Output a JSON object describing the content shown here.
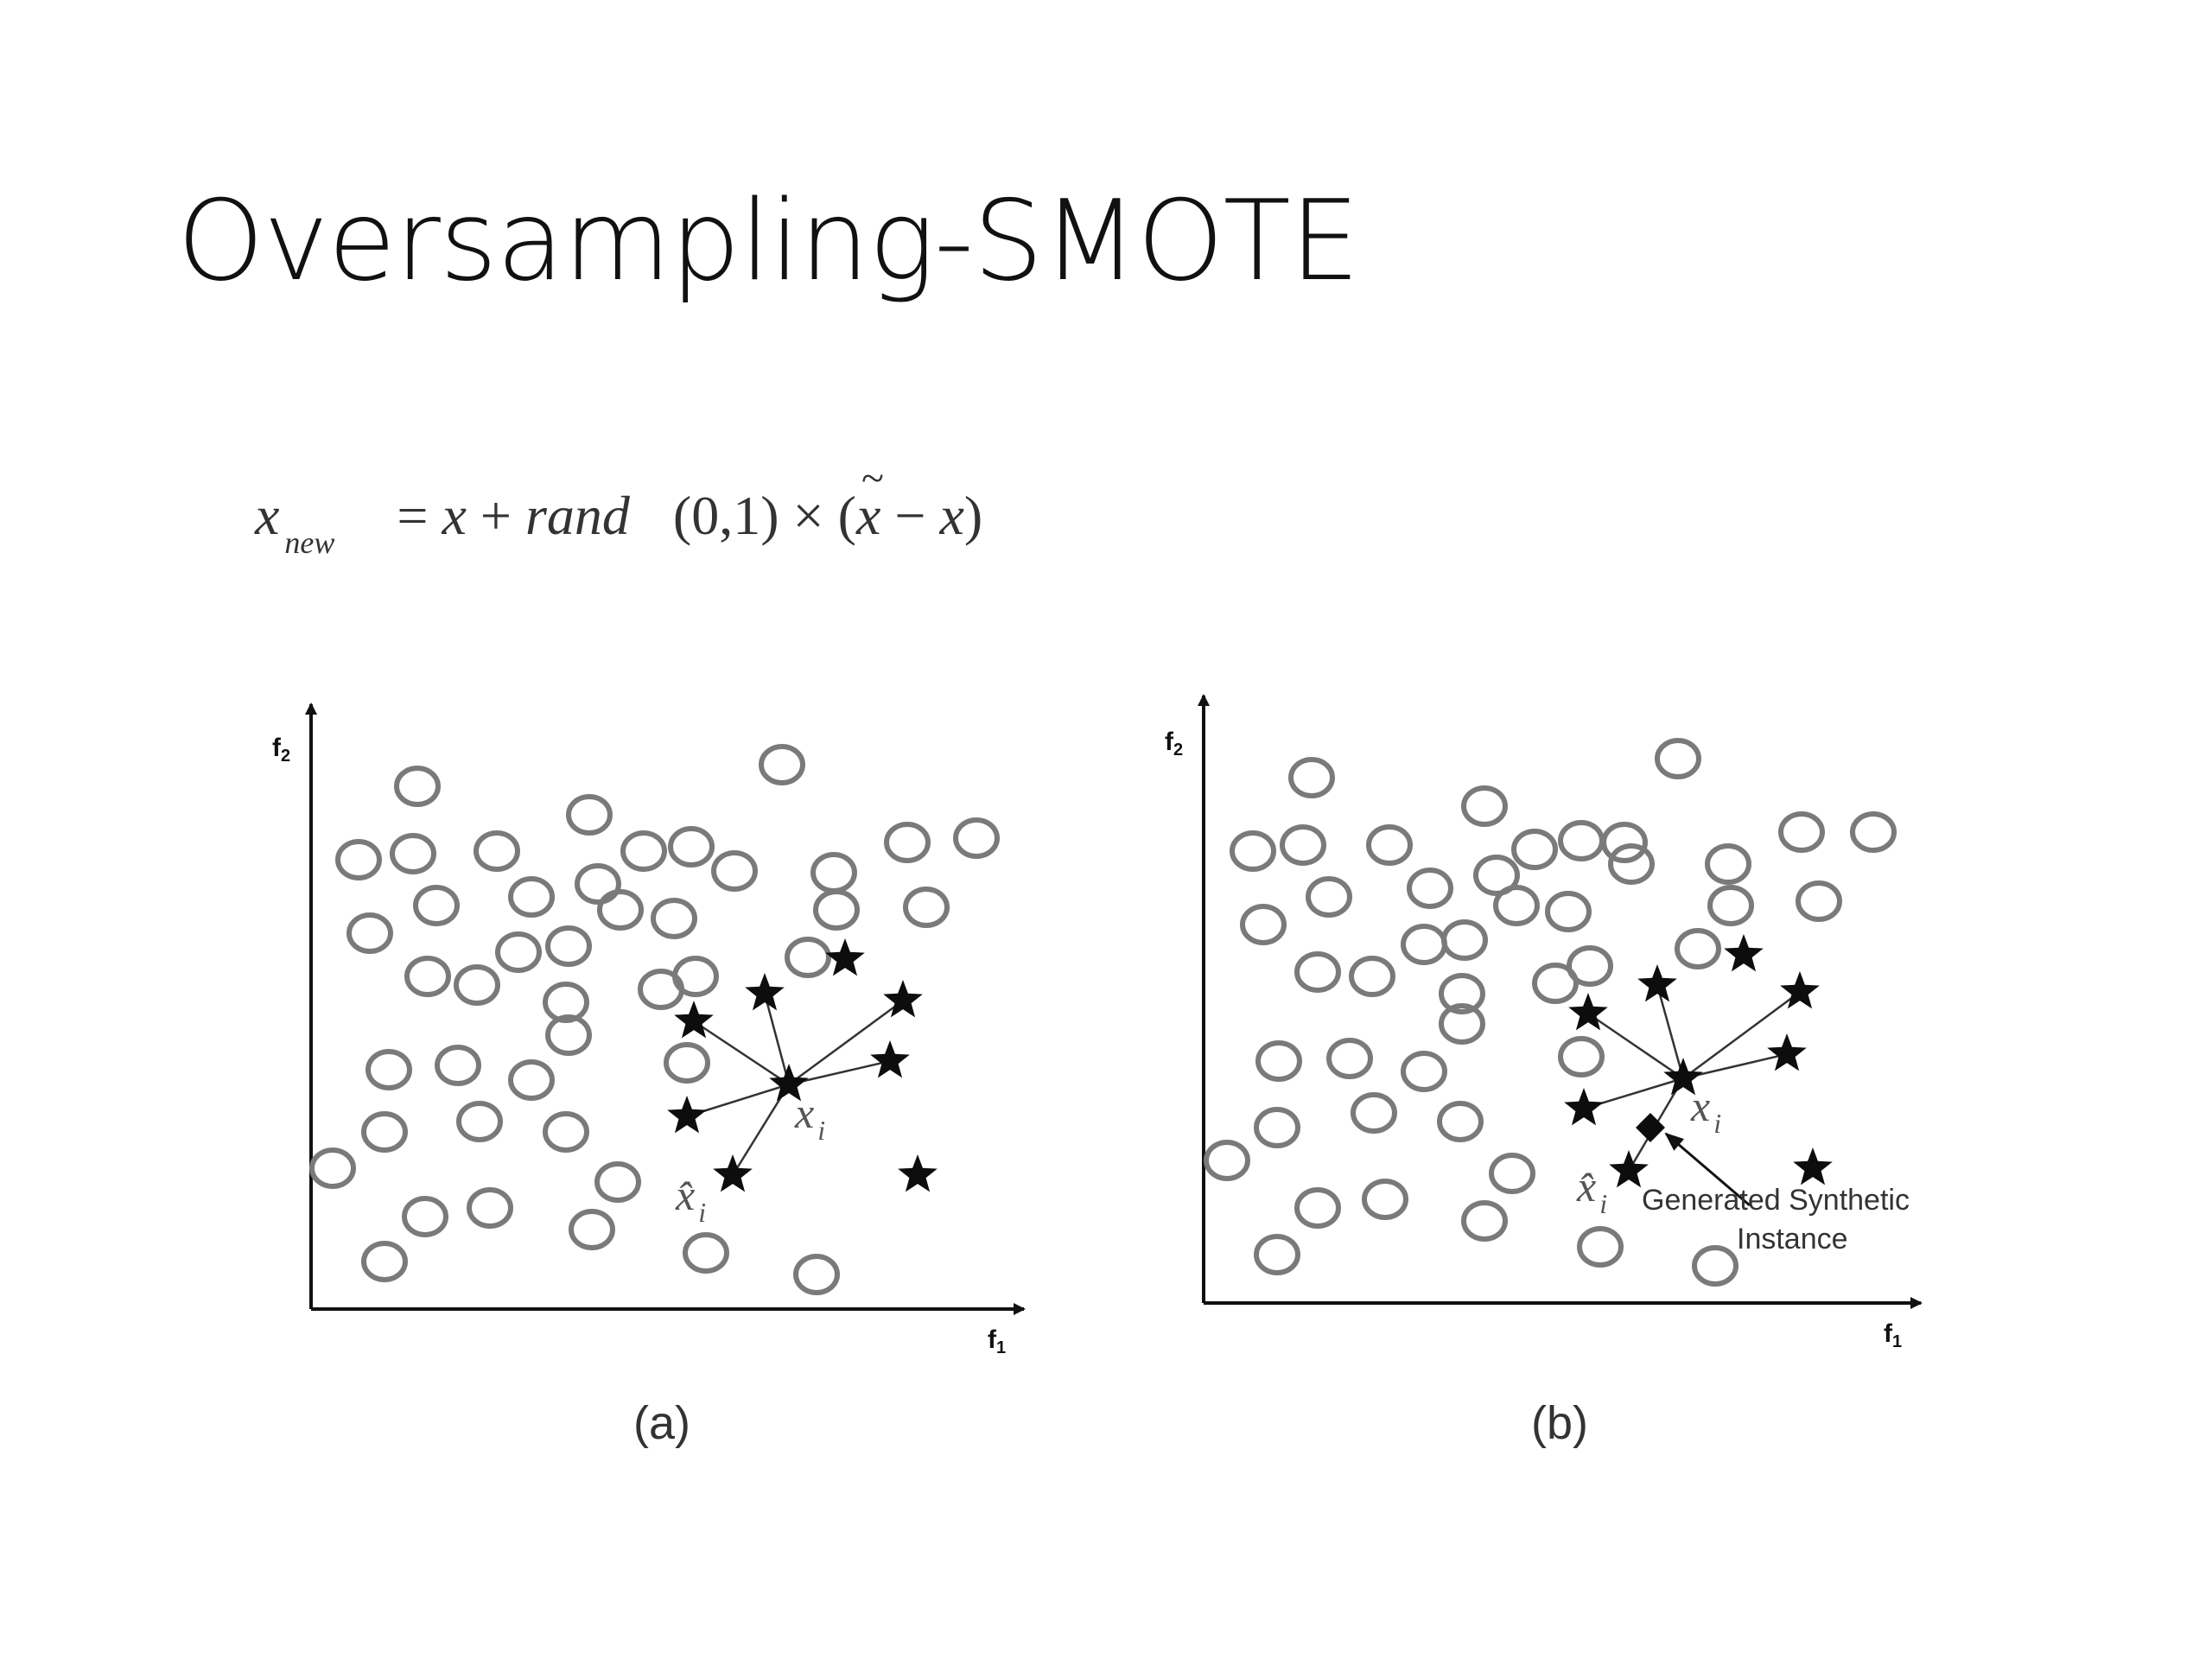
{
  "slide": {
    "title": "Oversampling-SMOTE"
  },
  "formula": {
    "lhs": "x",
    "lhs_sub": "new",
    "eq": "=",
    "rhs_x": "x",
    "plus": "+",
    "rand": "rand",
    "args": "(0,1)",
    "times": "×",
    "open": "(",
    "xtilde": "x",
    "minus": "−",
    "x2": "x",
    "close": ")"
  },
  "panels": [
    {
      "id": "a",
      "caption": "(a)",
      "xaxis_label": "f",
      "xaxis_sub": "1",
      "yaxis_label": "f",
      "yaxis_sub": "2",
      "xi_label": "x",
      "xi_sub": "i",
      "xhat_label": "x̂",
      "xhat_sub": "i",
      "majority_icon": "hollow-circle",
      "minority_icon": "black-star"
    },
    {
      "id": "b",
      "caption": "(b)",
      "xaxis_label": "f",
      "xaxis_sub": "1",
      "yaxis_label": "f",
      "yaxis_sub": "2",
      "xi_label": "x",
      "xi_sub": "i",
      "xhat_label": "x̂",
      "xhat_sub": "i",
      "synthetic_line1": "Generated Synthetic",
      "synthetic_line2": "Instance",
      "majority_icon": "hollow-circle",
      "minority_icon": "black-star",
      "synthetic_icon": "black-diamond"
    }
  ],
  "colors": {
    "circle_stroke": "#7a7a7a",
    "star_fill": "#0d0d0d",
    "axis": "#111111",
    "title": "#111111"
  }
}
